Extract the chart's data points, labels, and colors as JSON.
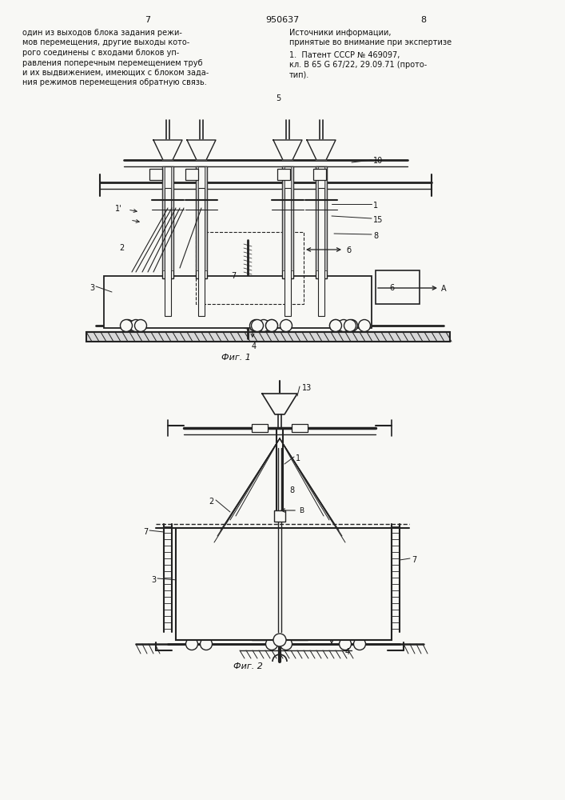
{
  "page_number_center": "950637",
  "page_number_left": "7",
  "page_number_right": "8",
  "left_text_lines": [
    "один из выходов блока задания режи-",
    "мов перемещения, другие выходы кото-",
    "рого соединены с входами блоков уп-",
    "равления поперечным перемещением труб",
    "и их выдвижением, имеющих с блоком зада-",
    "ния режимов перемещения обратную связь."
  ],
  "number_5": "5",
  "right_text_title_lines": [
    "Источники информации,",
    "принятые во внимание при экспертизе"
  ],
  "right_text_body_lines": [
    "1.  Патент СССР № 469097,",
    "кл. В 65 G 67/22, 29.09.71 (прото-",
    "тип)."
  ],
  "fig1_caption": "Фиг. 1",
  "fig2_caption": "Фиг. 2",
  "bg_color": "#f8f8f5",
  "text_color": "#111111",
  "line_color": "#222222"
}
